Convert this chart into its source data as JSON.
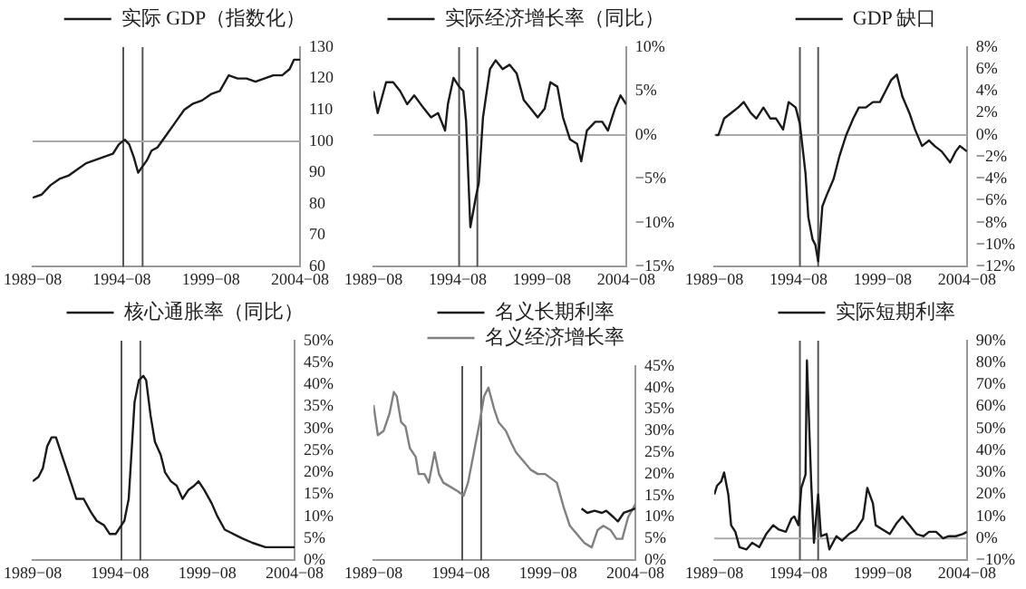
{
  "chart_data": [
    {
      "type": "line",
      "legend": "top",
      "grid": false,
      "series": [
        {
          "name": "实际 GDP（指数化）",
          "color": "#1a1a1a",
          "x": [
            "1989-08",
            "1990-02",
            "1990-08",
            "1991-02",
            "1991-08",
            "1992-02",
            "1992-08",
            "1993-02",
            "1993-08",
            "1994-02",
            "1994-06",
            "1994-10",
            "1995-01",
            "1995-04",
            "1995-07",
            "1995-10",
            "1996-01",
            "1996-04",
            "1996-08",
            "1997-02",
            "1997-08",
            "1998-02",
            "1998-08",
            "1999-02",
            "1999-08",
            "2000-02",
            "2000-08",
            "2001-02",
            "2001-08",
            "2002-02",
            "2002-08",
            "2003-02",
            "2003-08",
            "2004-01",
            "2004-04",
            "2004-08"
          ],
          "values": [
            82,
            83,
            86,
            88,
            89,
            91,
            93,
            94,
            95,
            96,
            99,
            100.5,
            99,
            95,
            90,
            92,
            94,
            97,
            98,
            102,
            106,
            110,
            112,
            113,
            115,
            116,
            121,
            120,
            120,
            119,
            120,
            121,
            121,
            123,
            126,
            126
          ]
        }
      ],
      "xlim": [
        "1989-08",
        "2004-08"
      ],
      "xticks": [
        {
          "value": "1989-08",
          "label": "1989−08"
        },
        {
          "value": "1994-08",
          "label": "1994−08"
        },
        {
          "value": "1999-08",
          "label": "1999−08"
        },
        {
          "value": "2004-08",
          "label": "2004−08"
        }
      ],
      "ylim": [
        60,
        130
      ],
      "yticks": [
        60,
        70,
        80,
        90,
        100,
        110,
        120,
        130
      ],
      "ref_lines": [
        {
          "axis": "x",
          "value": "1994-09",
          "color": "#555555"
        },
        {
          "axis": "x",
          "value": "1995-10",
          "color": "#555555"
        },
        {
          "axis": "y",
          "value": 100,
          "color": "#aaaaaa"
        }
      ]
    },
    {
      "type": "line",
      "legend": "top",
      "grid": false,
      "series": [
        {
          "name": "实际经济增长率（同比）",
          "color": "#1a1a1a",
          "x": [
            "1989-08",
            "1989-11",
            "1990-05",
            "1990-10",
            "1991-03",
            "1991-08",
            "1992-01",
            "1992-08",
            "1993-01",
            "1993-06",
            "1993-11",
            "1994-01",
            "1994-05",
            "1994-09",
            "1994-12",
            "1995-02",
            "1995-05",
            "1995-09",
            "1995-11",
            "1996-02",
            "1996-07",
            "1996-11",
            "1997-04",
            "1997-09",
            "1998-02",
            "1998-07",
            "1998-12",
            "1999-05",
            "1999-10",
            "2000-02",
            "2000-07",
            "2000-11",
            "2001-04",
            "2001-09",
            "2001-12",
            "2002-04",
            "2002-10",
            "2003-03",
            "2003-07",
            "2003-12",
            "2004-04",
            "2004-08"
          ],
          "values": [
            5,
            2.5,
            6,
            6,
            5,
            3.5,
            4.5,
            3,
            2,
            2.5,
            0.5,
            3.5,
            6.5,
            5.5,
            5,
            1.5,
            -10.5,
            -7,
            -5.5,
            2,
            7.5,
            8.5,
            7.5,
            8,
            7,
            4,
            3,
            2,
            3,
            6,
            5.5,
            2,
            -0.5,
            -1,
            -3,
            0.5,
            1.5,
            1.5,
            0.5,
            3,
            4.5,
            3.5
          ]
        }
      ],
      "xlim": [
        "1989-08",
        "2004-08"
      ],
      "xticks": [
        {
          "value": "1989-08",
          "label": "1989−08"
        },
        {
          "value": "1994-08",
          "label": "1994−08"
        },
        {
          "value": "1999-08",
          "label": "1999−08"
        },
        {
          "value": "2004-08",
          "label": "2004−08"
        }
      ],
      "ylim": [
        -15,
        10
      ],
      "yticks": [
        {
          "value": -15,
          "label": "−15%"
        },
        {
          "value": -10,
          "label": "−10%"
        },
        {
          "value": -5,
          "label": "−5%"
        },
        {
          "value": 0,
          "label": "0%"
        },
        {
          "value": 5,
          "label": "5%"
        },
        {
          "value": 10,
          "label": "10%"
        }
      ],
      "ref_lines": [
        {
          "axis": "x",
          "value": "1994-09",
          "color": "#555555"
        },
        {
          "axis": "x",
          "value": "1995-10",
          "color": "#555555"
        },
        {
          "axis": "y",
          "value": 0,
          "color": "#aaaaaa"
        }
      ]
    },
    {
      "type": "line",
      "legend": "top",
      "grid": false,
      "series": [
        {
          "name": "GDP 缺口",
          "color": "#1a1a1a",
          "x": [
            "1989-09",
            "1989-11",
            "1990-03",
            "1990-08",
            "1991-01",
            "1991-05",
            "1991-10",
            "1992-02",
            "1992-07",
            "1992-12",
            "1993-04",
            "1993-09",
            "1994-01",
            "1994-06",
            "1994-09",
            "1995-01",
            "1995-03",
            "1995-06",
            "1995-08",
            "1995-10",
            "1996-01",
            "1996-04",
            "1996-09",
            "1997-01",
            "1997-06",
            "1997-11",
            "1998-03",
            "1998-08",
            "1999-01",
            "1999-06",
            "1999-10",
            "2000-02",
            "2000-06",
            "2000-10",
            "2001-03",
            "2001-07",
            "2001-12",
            "2002-05",
            "2002-09",
            "2003-02",
            "2003-08",
            "2003-12",
            "2004-03",
            "2004-08"
          ],
          "values": [
            0,
            0,
            1.5,
            2,
            2.5,
            3,
            2,
            1.5,
            2.5,
            1.5,
            1.5,
            0.5,
            3,
            2.5,
            1,
            -3.5,
            -7.5,
            -9.5,
            -10,
            -11.5,
            -6.5,
            -5.5,
            -4,
            -2,
            0,
            1.5,
            2.5,
            2.5,
            3,
            3,
            4,
            5,
            5.5,
            3.5,
            2,
            0.5,
            -1,
            -0.5,
            -1,
            -1.5,
            -2.5,
            -1.5,
            -1,
            -1.5
          ]
        }
      ],
      "xlim": [
        "1989-08",
        "2004-08"
      ],
      "xticks": [
        {
          "value": "1989-08",
          "label": "1989−08"
        },
        {
          "value": "1994-08",
          "label": "1994−08"
        },
        {
          "value": "1999-08",
          "label": "1999−08"
        },
        {
          "value": "2004-08",
          "label": "2004−08"
        }
      ],
      "ylim": [
        -12,
        8
      ],
      "yticks": [
        {
          "value": -12,
          "label": "−12%"
        },
        {
          "value": -10,
          "label": "−10%"
        },
        {
          "value": -8,
          "label": "−8%"
        },
        {
          "value": -6,
          "label": "−6%"
        },
        {
          "value": -4,
          "label": "−4%"
        },
        {
          "value": -2,
          "label": "−2%"
        },
        {
          "value": 0,
          "label": "0%"
        },
        {
          "value": 2,
          "label": "2%"
        },
        {
          "value": 4,
          "label": "4%"
        },
        {
          "value": 6,
          "label": "6%"
        },
        {
          "value": 8,
          "label": "8%"
        }
      ],
      "ref_lines": [
        {
          "axis": "x",
          "value": "1994-09",
          "color": "#555555"
        },
        {
          "axis": "x",
          "value": "1995-10",
          "color": "#555555"
        },
        {
          "axis": "y",
          "value": 0,
          "color": "#aaaaaa"
        }
      ]
    },
    {
      "type": "line",
      "legend": "top",
      "grid": false,
      "series": [
        {
          "name": "核心通胀率（同比）",
          "color": "#1a1a1a",
          "x": [
            "1989-08",
            "1989-12",
            "1990-03",
            "1990-06",
            "1990-09",
            "1990-12",
            "1991-04",
            "1991-08",
            "1991-11",
            "1992-02",
            "1992-07",
            "1992-12",
            "1993-04",
            "1993-09",
            "1994-01",
            "1994-05",
            "1994-11",
            "1995-02",
            "1995-04",
            "1995-06",
            "1995-09",
            "1995-12",
            "1996-02",
            "1996-05",
            "1996-08",
            "1996-12",
            "1997-03",
            "1997-07",
            "1997-11",
            "1998-03",
            "1998-07",
            "1998-11",
            "1999-02",
            "1999-06",
            "1999-11",
            "2000-03",
            "2000-08",
            "2001-02",
            "2001-08",
            "2002-03",
            "2002-12",
            "2003-09",
            "2004-08"
          ],
          "values": [
            18,
            19,
            21,
            26,
            28,
            28,
            24,
            20,
            17,
            14,
            14,
            11,
            9,
            8,
            6,
            6,
            9,
            14,
            25,
            36,
            41,
            42,
            41,
            33,
            27,
            24,
            20,
            18,
            17,
            14,
            16,
            17,
            18,
            16,
            13,
            10,
            7,
            6,
            5,
            4,
            3,
            3,
            3
          ]
        }
      ],
      "xlim": [
        "1989-08",
        "2004-08"
      ],
      "xticks": [
        {
          "value": "1989-08",
          "label": "1989−08"
        },
        {
          "value": "1994-08",
          "label": "1994−08"
        },
        {
          "value": "1999-08",
          "label": "1999−08"
        },
        {
          "value": "2004-08",
          "label": "2004−08"
        }
      ],
      "ylim": [
        0,
        50
      ],
      "yticks": [
        {
          "value": 0,
          "label": "0%"
        },
        {
          "value": 5,
          "label": "5%"
        },
        {
          "value": 10,
          "label": "10%"
        },
        {
          "value": 15,
          "label": "15%"
        },
        {
          "value": 20,
          "label": "20%"
        },
        {
          "value": 25,
          "label": "25%"
        },
        {
          "value": 30,
          "label": "30%"
        },
        {
          "value": 35,
          "label": "35%"
        },
        {
          "value": 40,
          "label": "40%"
        },
        {
          "value": 45,
          "label": "45%"
        },
        {
          "value": 50,
          "label": "50%"
        }
      ],
      "ref_lines": [
        {
          "axis": "x",
          "value": "1994-09",
          "color": "#555555"
        },
        {
          "axis": "x",
          "value": "1995-10",
          "color": "#555555"
        }
      ]
    },
    {
      "type": "line",
      "legend": "top",
      "grid": false,
      "series": [
        {
          "name": "名义长期利率",
          "color": "#1a1a1a",
          "x": [
            "2001-07",
            "2001-11",
            "2002-04",
            "2002-09",
            "2002-12",
            "2003-05",
            "2003-08",
            "2003-12",
            "2004-04",
            "2004-08"
          ],
          "values": [
            12,
            11,
            11.5,
            11,
            11.5,
            10,
            9,
            11,
            11.5,
            12
          ]
        },
        {
          "name": "名义经济增长率",
          "color": "#808080",
          "x": [
            "1989-08",
            "1989-11",
            "1990-03",
            "1990-07",
            "1990-10",
            "1990-12",
            "1991-03",
            "1991-06",
            "1991-09",
            "1992-01",
            "1992-03",
            "1992-07",
            "1992-10",
            "1993-02",
            "1993-05",
            "1993-08",
            "1994-01",
            "1994-06",
            "1994-10",
            "1995-01",
            "1995-05",
            "1995-09",
            "1995-12",
            "1996-03",
            "1996-07",
            "1996-10",
            "1997-03",
            "1997-07",
            "1997-10",
            "1998-03",
            "1998-08",
            "1999-01",
            "1999-06",
            "1999-10",
            "2000-02",
            "2000-07",
            "2000-11",
            "2001-04",
            "2001-09",
            "2002-02",
            "2002-06",
            "2002-10",
            "2003-03",
            "2003-07",
            "2003-11",
            "2004-03",
            "2004-08"
          ],
          "values": [
            36,
            29,
            30,
            34,
            39,
            38,
            32,
            31,
            26,
            24,
            20,
            20,
            18,
            25,
            20,
            18,
            17,
            16,
            15,
            18,
            25,
            32,
            38,
            40,
            35,
            32,
            30,
            27,
            25,
            23,
            21,
            20,
            20,
            19,
            18,
            12,
            8,
            6,
            4,
            3,
            7,
            8,
            7,
            5,
            5,
            10,
            13
          ]
        }
      ],
      "xlim": [
        "1989-08",
        "2004-08"
      ],
      "xticks": [
        {
          "value": "1989-08",
          "label": "1989−08"
        },
        {
          "value": "1994-08",
          "label": "1994−08"
        },
        {
          "value": "1999-08",
          "label": "1999−08"
        },
        {
          "value": "2004-08",
          "label": "2004−08"
        }
      ],
      "ylim": [
        0,
        45
      ],
      "yticks": [
        {
          "value": 0,
          "label": "0%"
        },
        {
          "value": 5,
          "label": "5%"
        },
        {
          "value": 10,
          "label": "10%"
        },
        {
          "value": 15,
          "label": "15%"
        },
        {
          "value": 20,
          "label": "20%"
        },
        {
          "value": 25,
          "label": "25%"
        },
        {
          "value": 30,
          "label": "30%"
        },
        {
          "value": 35,
          "label": "35%"
        },
        {
          "value": 40,
          "label": "40%"
        },
        {
          "value": 45,
          "label": "45%"
        }
      ],
      "ref_lines": [
        {
          "axis": "x",
          "value": "1994-09",
          "color": "#555555"
        },
        {
          "axis": "x",
          "value": "1995-10",
          "color": "#555555"
        }
      ]
    },
    {
      "type": "line",
      "legend": "top",
      "grid": false,
      "series": [
        {
          "name": "实际短期利率",
          "color": "#1a1a1a",
          "x": [
            "1989-08",
            "1989-10",
            "1990-01",
            "1990-03",
            "1990-06",
            "1990-08",
            "1990-11",
            "1991-02",
            "1991-07",
            "1991-11",
            "1992-04",
            "1992-09",
            "1993-02",
            "1993-06",
            "1993-11",
            "1994-03",
            "1994-05",
            "1994-08",
            "1994-10",
            "1995-01",
            "1995-02",
            "1995-05",
            "1995-07",
            "1995-10",
            "1995-12",
            "1996-04",
            "1996-06",
            "1996-11",
            "1997-03",
            "1997-08",
            "1998-01",
            "1998-06",
            "1998-09",
            "1999-01",
            "1999-03",
            "1999-08",
            "2000-01",
            "2000-06",
            "2000-10",
            "2001-03",
            "2001-08",
            "2002-01",
            "2002-05",
            "2002-10",
            "2003-03",
            "2003-07",
            "2003-12",
            "2004-05",
            "2004-08"
          ],
          "values": [
            20,
            24,
            26,
            30,
            20,
            6,
            3,
            -4,
            -5,
            -2,
            -4,
            2,
            6,
            4,
            3,
            9,
            10,
            6,
            23,
            29,
            81,
            26,
            -2,
            20,
            1,
            2,
            -5,
            1,
            -1,
            2,
            4,
            9,
            23,
            16,
            6,
            4,
            2,
            7,
            10,
            6,
            2,
            1,
            3,
            3,
            0,
            1,
            1,
            2,
            3
          ]
        }
      ],
      "xlim": [
        "1989-08",
        "2004-08"
      ],
      "xticks": [
        {
          "value": "1989-08",
          "label": "1989−08"
        },
        {
          "value": "1994-08",
          "label": "1994−08"
        },
        {
          "value": "1999-08",
          "label": "1999−08"
        },
        {
          "value": "2004-08",
          "label": "2004−08"
        }
      ],
      "ylim": [
        -10,
        90
      ],
      "yticks": [
        {
          "value": -10,
          "label": "−10%"
        },
        {
          "value": 0,
          "label": "0%"
        },
        {
          "value": 10,
          "label": "10%"
        },
        {
          "value": 20,
          "label": "20%"
        },
        {
          "value": 30,
          "label": "30%"
        },
        {
          "value": 40,
          "label": "40%"
        },
        {
          "value": 50,
          "label": "50%"
        },
        {
          "value": 60,
          "label": "60%"
        },
        {
          "value": 70,
          "label": "70%"
        },
        {
          "value": 80,
          "label": "80%"
        },
        {
          "value": 90,
          "label": "90%"
        }
      ],
      "ref_lines": [
        {
          "axis": "x",
          "value": "1994-09",
          "color": "#555555"
        },
        {
          "axis": "x",
          "value": "1995-10",
          "color": "#555555"
        },
        {
          "axis": "y",
          "value": 0,
          "color": "#aaaaaa"
        }
      ]
    }
  ]
}
